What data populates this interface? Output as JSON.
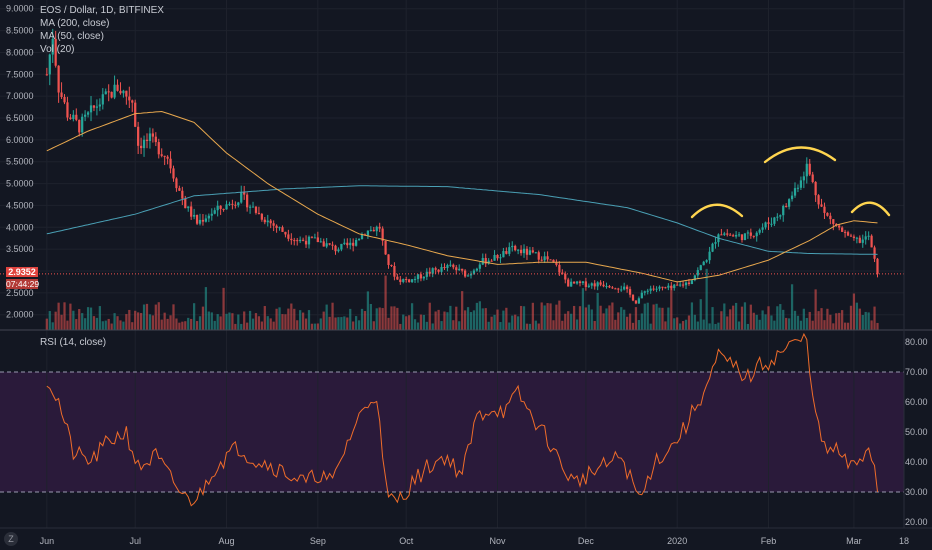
{
  "legend": {
    "symbol": "EOS / Dollar, 1D, BITFINEX",
    "ma200": "MA (200, close)",
    "ma50": "MA (50, close)",
    "vol": "Vol (20)",
    "rsi": "RSI (14, close)"
  },
  "current_price": {
    "price": "2.9352",
    "countdown": "07:44:29"
  },
  "colors": {
    "background": "#131722",
    "up": "#26a69a",
    "down": "#ef5350",
    "ma200": "#4aa0b5",
    "ma50": "#e8a84e",
    "rsi": "#ef6c2a",
    "rsi_band": "#2a1a3a",
    "pattern": "#ffd54f"
  },
  "corner_button": "Z",
  "chart_data": [
    {
      "type": "candlestick",
      "title": "EOS / Dollar, 1D, BITFINEX",
      "x": [
        "Jun",
        "Jul",
        "Aug",
        "Sep",
        "Oct",
        "Nov",
        "Dec",
        "2020",
        "Feb",
        "Mar",
        "18"
      ],
      "y_ticks": [
        "2.0000",
        "2.5000",
        "3.0000",
        "3.5000",
        "4.0000",
        "4.5000",
        "5.0000",
        "5.5000",
        "6.0000",
        "6.5000",
        "7.0000",
        "7.5000",
        "8.0000",
        "8.5000",
        "9.0000"
      ],
      "ylim": [
        1.65,
        9.2
      ],
      "price_path": [
        [
          "2019-06-01",
          7.5
        ],
        [
          "2019-06-03",
          8.4
        ],
        [
          "2019-06-05",
          7.2
        ],
        [
          "2019-06-08",
          6.6
        ],
        [
          "2019-06-12",
          6.3
        ],
        [
          "2019-06-18",
          6.8
        ],
        [
          "2019-06-25",
          7.2
        ],
        [
          "2019-06-30",
          6.9
        ],
        [
          "2019-07-02",
          5.9
        ],
        [
          "2019-07-06",
          6.0
        ],
        [
          "2019-07-12",
          5.6
        ],
        [
          "2019-07-15",
          5.0
        ],
        [
          "2019-07-18",
          4.5
        ],
        [
          "2019-07-22",
          4.1
        ],
        [
          "2019-07-26",
          4.3
        ],
        [
          "2019-08-01",
          4.5
        ],
        [
          "2019-08-06",
          4.7
        ],
        [
          "2019-08-12",
          4.3
        ],
        [
          "2019-08-18",
          4.0
        ],
        [
          "2019-08-25",
          3.7
        ],
        [
          "2019-09-01",
          3.7
        ],
        [
          "2019-09-07",
          3.5
        ],
        [
          "2019-09-12",
          3.6
        ],
        [
          "2019-09-17",
          3.9
        ],
        [
          "2019-09-22",
          4.0
        ],
        [
          "2019-09-24",
          3.3
        ],
        [
          "2019-09-28",
          2.8
        ],
        [
          "2019-10-03",
          2.8
        ],
        [
          "2019-10-10",
          3.0
        ],
        [
          "2019-10-16",
          3.1
        ],
        [
          "2019-10-22",
          2.9
        ],
        [
          "2019-10-26",
          3.2
        ],
        [
          "2019-10-31",
          3.3
        ],
        [
          "2019-11-06",
          3.5
        ],
        [
          "2019-11-12",
          3.4
        ],
        [
          "2019-11-17",
          3.3
        ],
        [
          "2019-11-21",
          3.1
        ],
        [
          "2019-11-25",
          2.7
        ],
        [
          "2019-12-01",
          2.7
        ],
        [
          "2019-12-08",
          2.7
        ],
        [
          "2019-12-14",
          2.6
        ],
        [
          "2019-12-18",
          2.3
        ],
        [
          "2019-12-22",
          2.6
        ],
        [
          "2019-12-30",
          2.6
        ],
        [
          "2020-01-05",
          2.75
        ],
        [
          "2020-01-08",
          3.0
        ],
        [
          "2020-01-12",
          3.4
        ],
        [
          "2020-01-15",
          3.9
        ],
        [
          "2020-01-20",
          3.8
        ],
        [
          "2020-01-25",
          3.8
        ],
        [
          "2020-01-30",
          4.0
        ],
        [
          "2020-02-03",
          4.2
        ],
        [
          "2020-02-07",
          4.5
        ],
        [
          "2020-02-11",
          5.0
        ],
        [
          "2020-02-14",
          5.4
        ],
        [
          "2020-02-17",
          4.8
        ],
        [
          "2020-02-20",
          4.3
        ],
        [
          "2020-02-23",
          4.1
        ],
        [
          "2020-02-26",
          3.9
        ],
        [
          "2020-02-29",
          3.7
        ],
        [
          "2020-03-04",
          3.7
        ],
        [
          "2020-03-06",
          3.8
        ],
        [
          "2020-03-07",
          3.5
        ],
        [
          "2020-03-09",
          2.94
        ]
      ],
      "ma200": [
        [
          "2019-06-01",
          3.85
        ],
        [
          "2019-07-01",
          4.3
        ],
        [
          "2019-07-21",
          4.72
        ],
        [
          "2019-08-21",
          4.88
        ],
        [
          "2019-09-15",
          4.95
        ],
        [
          "2019-10-15",
          4.93
        ],
        [
          "2019-11-15",
          4.75
        ],
        [
          "2019-12-15",
          4.45
        ],
        [
          "2020-01-01",
          4.1
        ],
        [
          "2020-01-15",
          3.75
        ],
        [
          "2020-02-01",
          3.45
        ],
        [
          "2020-02-15",
          3.4
        ],
        [
          "2020-03-09",
          3.38
        ]
      ],
      "ma50": [
        [
          "2019-06-01",
          5.75
        ],
        [
          "2019-06-15",
          6.2
        ],
        [
          "2019-07-01",
          6.6
        ],
        [
          "2019-07-10",
          6.65
        ],
        [
          "2019-07-21",
          6.4
        ],
        [
          "2019-08-01",
          5.7
        ],
        [
          "2019-08-15",
          5.0
        ],
        [
          "2019-09-01",
          4.3
        ],
        [
          "2019-09-15",
          3.85
        ],
        [
          "2019-10-01",
          3.6
        ],
        [
          "2019-10-15",
          3.35
        ],
        [
          "2019-11-01",
          3.15
        ],
        [
          "2019-11-15",
          3.2
        ],
        [
          "2019-12-01",
          3.2
        ],
        [
          "2019-12-20",
          2.95
        ],
        [
          "2020-01-01",
          2.75
        ],
        [
          "2020-01-15",
          2.9
        ],
        [
          "2020-02-01",
          3.25
        ],
        [
          "2020-02-15",
          3.7
        ],
        [
          "2020-02-24",
          4.05
        ],
        [
          "2020-03-01",
          4.15
        ],
        [
          "2020-03-09",
          4.1
        ]
      ],
      "current_price_line": 2.9352
    },
    {
      "type": "line",
      "title": "RSI (14, close)",
      "y_ticks": [
        "20.00",
        "30.00",
        "40.00",
        "50.00",
        "60.00",
        "70.00",
        "80.00"
      ],
      "ylim": [
        18,
        84
      ],
      "bands": [
        30,
        70
      ],
      "values": [
        [
          "2019-06-01",
          68
        ],
        [
          "2019-06-05",
          60
        ],
        [
          "2019-06-10",
          43
        ],
        [
          "2019-06-16",
          40
        ],
        [
          "2019-06-22",
          47
        ],
        [
          "2019-06-28",
          50
        ],
        [
          "2019-07-02",
          38
        ],
        [
          "2019-07-08",
          42
        ],
        [
          "2019-07-14",
          33
        ],
        [
          "2019-07-19",
          27
        ],
        [
          "2019-07-23",
          29
        ],
        [
          "2019-07-27",
          37
        ],
        [
          "2019-08-01",
          42
        ],
        [
          "2019-08-05",
          45
        ],
        [
          "2019-08-10",
          41
        ],
        [
          "2019-08-16",
          39
        ],
        [
          "2019-08-22",
          36
        ],
        [
          "2019-08-28",
          33
        ],
        [
          "2019-09-01",
          36
        ],
        [
          "2019-09-06",
          33
        ],
        [
          "2019-09-10",
          44
        ],
        [
          "2019-09-14",
          53
        ],
        [
          "2019-09-18",
          60
        ],
        [
          "2019-09-21",
          63
        ],
        [
          "2019-09-23",
          40
        ],
        [
          "2019-09-25",
          27
        ],
        [
          "2019-09-29",
          28
        ],
        [
          "2019-10-03",
          33
        ],
        [
          "2019-10-08",
          38
        ],
        [
          "2019-10-14",
          42
        ],
        [
          "2019-10-20",
          36
        ],
        [
          "2019-10-25",
          55
        ],
        [
          "2019-10-30",
          58
        ],
        [
          "2019-11-04",
          57
        ],
        [
          "2019-11-08",
          63
        ],
        [
          "2019-11-12",
          56
        ],
        [
          "2019-11-18",
          48
        ],
        [
          "2019-11-22",
          40
        ],
        [
          "2019-11-27",
          33
        ],
        [
          "2019-12-02",
          36
        ],
        [
          "2019-12-08",
          39
        ],
        [
          "2019-12-13",
          42
        ],
        [
          "2019-12-18",
          30
        ],
        [
          "2019-12-20",
          28
        ],
        [
          "2019-12-24",
          40
        ],
        [
          "2019-12-30",
          45
        ],
        [
          "2020-01-04",
          52
        ],
        [
          "2020-01-08",
          60
        ],
        [
          "2020-01-11",
          65
        ],
        [
          "2020-01-15",
          75
        ],
        [
          "2020-01-20",
          72
        ],
        [
          "2020-01-25",
          68
        ],
        [
          "2020-01-29",
          72
        ],
        [
          "2020-02-02",
          74
        ],
        [
          "2020-02-07",
          78
        ],
        [
          "2020-02-11",
          80
        ],
        [
          "2020-02-14",
          81
        ],
        [
          "2020-02-17",
          55
        ],
        [
          "2020-02-20",
          44
        ],
        [
          "2020-02-24",
          44
        ],
        [
          "2020-02-27",
          40
        ],
        [
          "2020-03-01",
          38
        ],
        [
          "2020-03-04",
          42
        ],
        [
          "2020-03-06",
          46
        ],
        [
          "2020-03-08",
          38
        ],
        [
          "2020-03-09",
          30
        ]
      ]
    }
  ]
}
